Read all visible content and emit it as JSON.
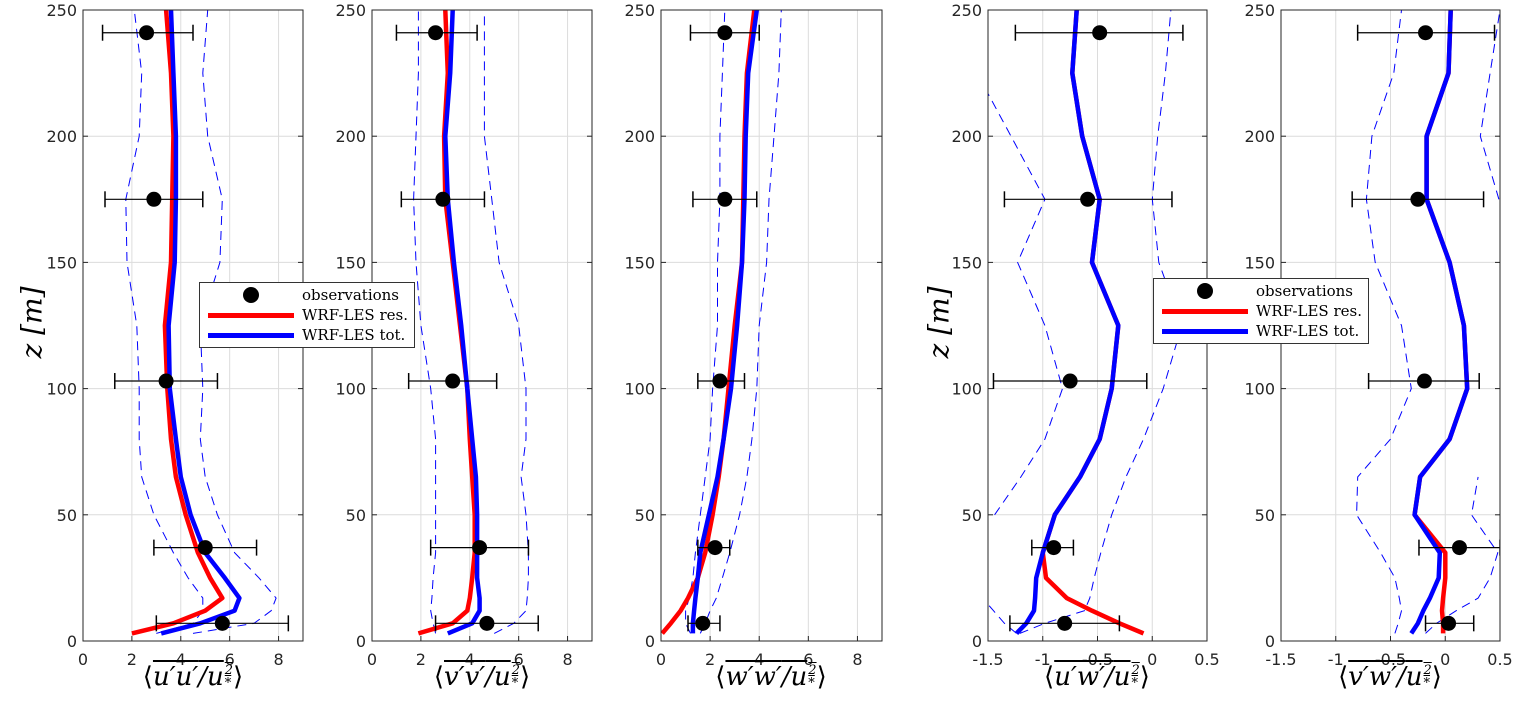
{
  "chart_data": {
    "type": "line",
    "ylabel": "z [m]",
    "ylim": [
      0,
      250
    ],
    "yticks": [
      0,
      50,
      100,
      150,
      200,
      250
    ],
    "obs_z": [
      241,
      175,
      103,
      37,
      7
    ],
    "legend": {
      "observations": "observations",
      "res": "WRF-LES res.",
      "tot": "WRF-LES tot."
    },
    "colors": {
      "res": "#ff0000",
      "tot": "#0000ff",
      "obs": "#000000",
      "band": "#0000ff"
    },
    "z": [
      3,
      7,
      12,
      17,
      25,
      35,
      50,
      65,
      80,
      100,
      125,
      150,
      175,
      200,
      225,
      250
    ],
    "panels": [
      {
        "xlabel": {
          "a": "u′u′",
          "b": "u",
          "sub": "*",
          "sup": "2"
        },
        "xlim": [
          0,
          9
        ],
        "xticks": [
          0,
          2,
          4,
          6,
          8
        ],
        "obs_x": [
          2.6,
          2.9,
          3.4,
          5.0,
          5.7
        ],
        "obs_lo": [
          0.8,
          0.9,
          1.3,
          2.9,
          3.0
        ],
        "obs_hi": [
          4.5,
          4.9,
          5.5,
          7.1,
          8.4
        ],
        "res": [
          2.0,
          3.7,
          5.0,
          5.7,
          5.2,
          4.7,
          4.2,
          3.8,
          3.6,
          3.45,
          3.35,
          3.6,
          3.65,
          3.7,
          3.6,
          3.4
        ],
        "tot": [
          3.2,
          4.8,
          6.2,
          6.4,
          5.8,
          5.0,
          4.4,
          4.0,
          3.8,
          3.55,
          3.5,
          3.75,
          3.8,
          3.8,
          3.7,
          3.6
        ],
        "lower": [
          3.0,
          4.5,
          4.9,
          4.9,
          4.3,
          3.7,
          2.9,
          2.4,
          2.3,
          2.3,
          2.2,
          1.8,
          1.75,
          2.3,
          2.4,
          2.1
        ],
        "upper": [
          4.5,
          7.0,
          7.7,
          7.9,
          7.2,
          6.2,
          5.5,
          5.0,
          4.8,
          4.9,
          4.8,
          5.6,
          5.7,
          5.1,
          4.9,
          5.1
        ]
      },
      {
        "xlabel": {
          "a": "v′v′",
          "b": "u",
          "sub": "*",
          "sup": "2"
        },
        "xlim": [
          0,
          9
        ],
        "xticks": [
          0,
          2,
          4,
          6,
          8
        ],
        "obs_x": [
          2.6,
          2.9,
          3.3,
          4.4,
          4.7
        ],
        "obs_lo": [
          1.0,
          1.2,
          1.5,
          2.4,
          2.6
        ],
        "obs_hi": [
          4.3,
          4.6,
          5.1,
          6.4,
          6.8
        ],
        "res": [
          1.9,
          3.3,
          3.9,
          4.0,
          4.1,
          4.2,
          4.2,
          4.1,
          4.0,
          3.9,
          3.6,
          3.3,
          3.0,
          2.95,
          3.1,
          3.0
        ],
        "tot": [
          3.1,
          4.1,
          4.4,
          4.4,
          4.3,
          4.3,
          4.3,
          4.25,
          4.1,
          3.9,
          3.65,
          3.35,
          3.1,
          3.0,
          3.2,
          3.3
        ],
        "lower": [
          2.6,
          2.5,
          2.4,
          2.45,
          2.5,
          2.6,
          2.6,
          2.6,
          2.6,
          2.4,
          2.0,
          1.8,
          1.7,
          1.8,
          1.9,
          1.9
        ],
        "upper": [
          5.0,
          5.8,
          6.3,
          6.35,
          6.4,
          6.4,
          6.3,
          6.1,
          6.3,
          6.3,
          6.0,
          5.2,
          4.9,
          4.6,
          4.6,
          4.6
        ]
      },
      {
        "xlabel": {
          "a": "w′w′",
          "b": "u",
          "sub": "*",
          "sup": "2"
        },
        "xlim": [
          0,
          9
        ],
        "xticks": [
          0,
          2,
          4,
          6,
          8
        ],
        "obs_x": [
          2.6,
          2.6,
          2.4,
          2.2,
          1.7
        ],
        "obs_lo": [
          1.2,
          1.3,
          1.5,
          1.5,
          1.1
        ],
        "obs_hi": [
          4.0,
          3.9,
          3.4,
          2.8,
          2.4
        ],
        "res": [
          0.05,
          0.4,
          0.8,
          1.1,
          1.5,
          1.8,
          2.1,
          2.35,
          2.55,
          2.75,
          3.0,
          3.3,
          3.35,
          3.4,
          3.5,
          3.8
        ],
        "tot": [
          1.3,
          1.3,
          1.35,
          1.4,
          1.5,
          1.6,
          1.95,
          2.3,
          2.55,
          2.85,
          3.1,
          3.3,
          3.4,
          3.45,
          3.55,
          3.9
        ],
        "lower": [
          1.2,
          1.0,
          1.0,
          1.15,
          1.3,
          1.4,
          1.6,
          1.8,
          2.0,
          2.1,
          2.3,
          2.3,
          2.4,
          2.4,
          2.5,
          2.6
        ],
        "upper": [
          1.6,
          1.8,
          2.0,
          2.25,
          2.5,
          2.8,
          3.2,
          3.5,
          3.7,
          3.9,
          4.0,
          4.3,
          4.4,
          4.6,
          4.8,
          4.9
        ]
      },
      {
        "xlabel": {
          "a": "u′w′",
          "b": "u",
          "sub": "*",
          "sup": "2"
        },
        "xlim": [
          -1.5,
          0.5
        ],
        "xticks": [
          -1.5,
          -1,
          -0.5,
          0,
          0.5
        ],
        "obs_x": [
          -0.48,
          -0.59,
          -0.75,
          -0.9,
          -0.8
        ],
        "obs_lo": [
          -1.25,
          -1.35,
          -1.45,
          -1.1,
          -1.3
        ],
        "obs_hi": [
          0.28,
          0.18,
          -0.05,
          -0.72,
          -0.3
        ],
        "res": [
          -0.08,
          -0.3,
          -0.55,
          -0.78,
          -0.97,
          -1.0,
          -0.89,
          -0.66,
          -0.48,
          -0.37,
          -0.31,
          -0.55,
          -0.48,
          -0.64,
          -0.73,
          -0.69
        ],
        "tot": [
          -1.24,
          -1.15,
          -1.08,
          -1.07,
          -1.06,
          -1.0,
          -0.89,
          -0.66,
          -0.48,
          -0.37,
          -0.31,
          -0.55,
          -0.48,
          -0.64,
          -0.73,
          -0.69
        ],
        "lower": [
          -1.24,
          -1.35,
          -1.45,
          -1.55,
          null,
          null,
          -1.44,
          -1.2,
          -0.98,
          -0.82,
          -0.98,
          -1.23,
          -0.98,
          -1.29,
          -1.6,
          null
        ],
        "upper": [
          -1.21,
          -0.98,
          -0.62,
          -0.57,
          -0.53,
          -0.47,
          -0.37,
          -0.24,
          -0.08,
          0.1,
          0.27,
          0.06,
          0.0,
          0.05,
          0.12,
          0.17
        ]
      },
      {
        "xlabel": {
          "a": "v′w′",
          "b": "u",
          "sub": "*",
          "sup": "2"
        },
        "xlim": [
          -1.5,
          0.5
        ],
        "xticks": [
          -1.5,
          -1,
          -0.5,
          0,
          0.5
        ],
        "obs_x": [
          -0.18,
          -0.25,
          -0.19,
          0.13,
          0.03
        ],
        "obs_lo": [
          -0.8,
          -0.85,
          -0.7,
          -0.24,
          -0.18
        ],
        "obs_hi": [
          0.45,
          0.35,
          0.31,
          0.5,
          0.26
        ],
        "res": [
          -0.02,
          -0.02,
          -0.03,
          -0.02,
          0.0,
          0.0,
          -0.28,
          -0.23,
          0.04,
          0.2,
          0.17,
          0.04,
          -0.17,
          -0.17,
          0.03,
          0.05
        ],
        "tot": [
          -0.31,
          -0.25,
          -0.2,
          -0.14,
          -0.06,
          -0.05,
          -0.28,
          -0.23,
          0.04,
          0.2,
          0.17,
          0.04,
          -0.17,
          -0.17,
          0.03,
          0.05
        ],
        "lower": [
          -0.46,
          -0.43,
          -0.4,
          -0.42,
          -0.46,
          -0.59,
          -0.81,
          -0.8,
          -0.5,
          -0.31,
          -0.4,
          -0.64,
          -0.72,
          -0.67,
          -0.47,
          -0.4
        ],
        "upper": [
          -0.18,
          -0.08,
          0.1,
          0.3,
          0.41,
          0.48,
          0.24,
          0.3,
          null,
          null,
          null,
          null,
          0.49,
          0.32,
          0.41,
          0.5
        ]
      }
    ]
  }
}
